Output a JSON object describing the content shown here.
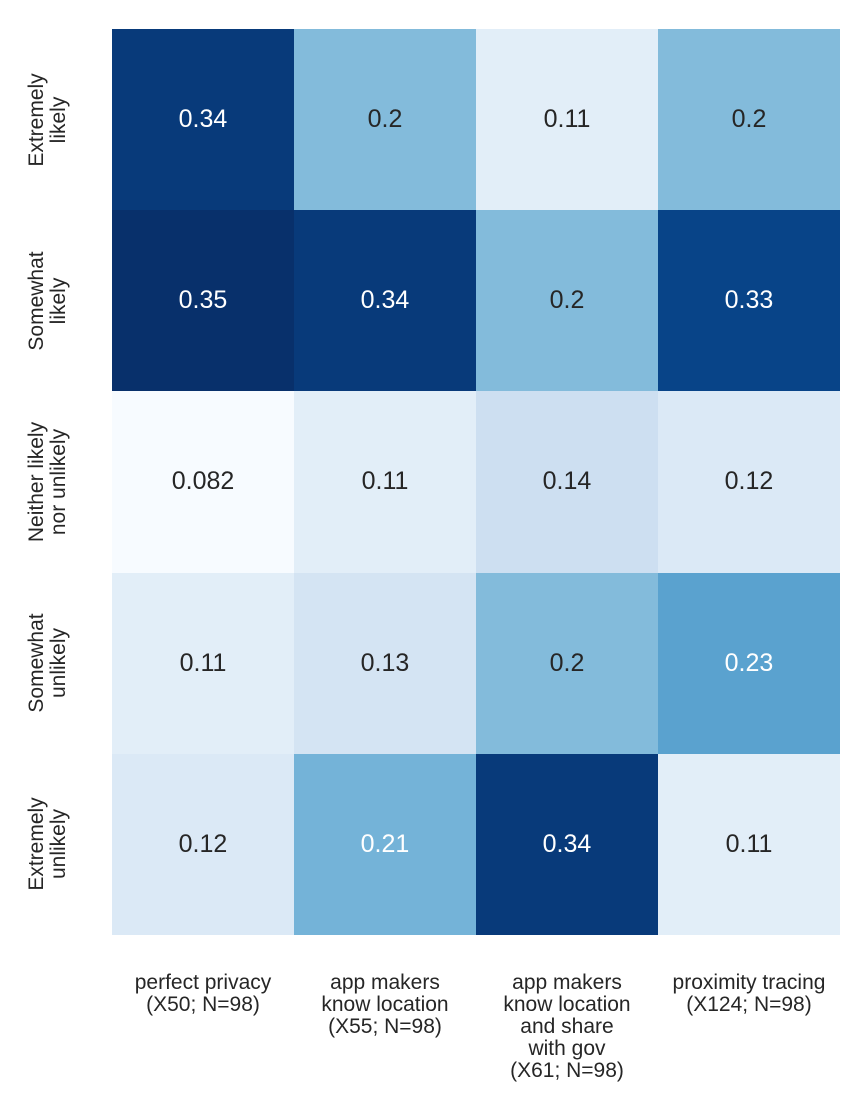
{
  "figure": {
    "background_color": "#ffffff",
    "tick_text_color": "#262626"
  },
  "chart_data": {
    "type": "heatmap",
    "title": "",
    "xlabel": "",
    "ylabel": "",
    "colormap": "Blues",
    "vmin": 0.082,
    "vmax": 0.35,
    "grid": false,
    "legend": "none",
    "x_tick_labels": [
      [
        "perfect privacy",
        "(X50; N=98)"
      ],
      [
        "app makers",
        "know location",
        "(X55; N=98)"
      ],
      [
        "app makers",
        "know location",
        "and share",
        "with gov",
        "(X61; N=98)"
      ],
      [
        "proximity tracing",
        "(X124; N=98)"
      ]
    ],
    "y_tick_labels": [
      [
        "Extremely",
        "likely"
      ],
      [
        "Somewhat",
        "likely"
      ],
      [
        "Neither likely",
        "nor unlikely"
      ],
      [
        "Somewhat",
        "unlikely"
      ],
      [
        "Extremely",
        "unlikely"
      ]
    ],
    "rows": [
      {
        "label": "Extremely likely",
        "values": [
          0.34,
          0.2,
          0.11,
          0.2
        ],
        "display": [
          "0.34",
          "0.2",
          "0.11",
          "0.2"
        ],
        "colors": [
          "#083a7a",
          "#83bbdb",
          "#e2eef8",
          "#83bbdb"
        ],
        "text_colors": [
          "#ffffff",
          "#262626",
          "#262626",
          "#262626"
        ]
      },
      {
        "label": "Somewhat likely",
        "values": [
          0.35,
          0.34,
          0.2,
          0.33
        ],
        "display": [
          "0.35",
          "0.34",
          "0.2",
          "0.33"
        ],
        "colors": [
          "#08306b",
          "#083a7a",
          "#83bbdb",
          "#084488"
        ],
        "text_colors": [
          "#ffffff",
          "#ffffff",
          "#262626",
          "#ffffff"
        ]
      },
      {
        "label": "Neither likely nor unlikely",
        "values": [
          0.082,
          0.11,
          0.14,
          0.12
        ],
        "display": [
          "0.082",
          "0.11",
          "0.14",
          "0.12"
        ],
        "colors": [
          "#f7fbff",
          "#e2eef8",
          "#cddff1",
          "#dbe9f6"
        ],
        "text_colors": [
          "#262626",
          "#262626",
          "#262626",
          "#262626"
        ]
      },
      {
        "label": "Somewhat unlikely",
        "values": [
          0.11,
          0.13,
          0.2,
          0.23
        ],
        "display": [
          "0.11",
          "0.13",
          "0.2",
          "0.23"
        ],
        "colors": [
          "#e2eef8",
          "#d4e4f3",
          "#83bbdb",
          "#5aa2cf"
        ],
        "text_colors": [
          "#262626",
          "#262626",
          "#262626",
          "#ffffff"
        ]
      },
      {
        "label": "Extremely unlikely",
        "values": [
          0.12,
          0.21,
          0.34,
          0.11
        ],
        "display": [
          "0.12",
          "0.21",
          "0.34",
          "0.11"
        ],
        "colors": [
          "#dbe9f6",
          "#74b3d8",
          "#083a7a",
          "#e2eef8"
        ],
        "text_colors": [
          "#262626",
          "#ffffff",
          "#ffffff",
          "#262626"
        ]
      }
    ]
  }
}
